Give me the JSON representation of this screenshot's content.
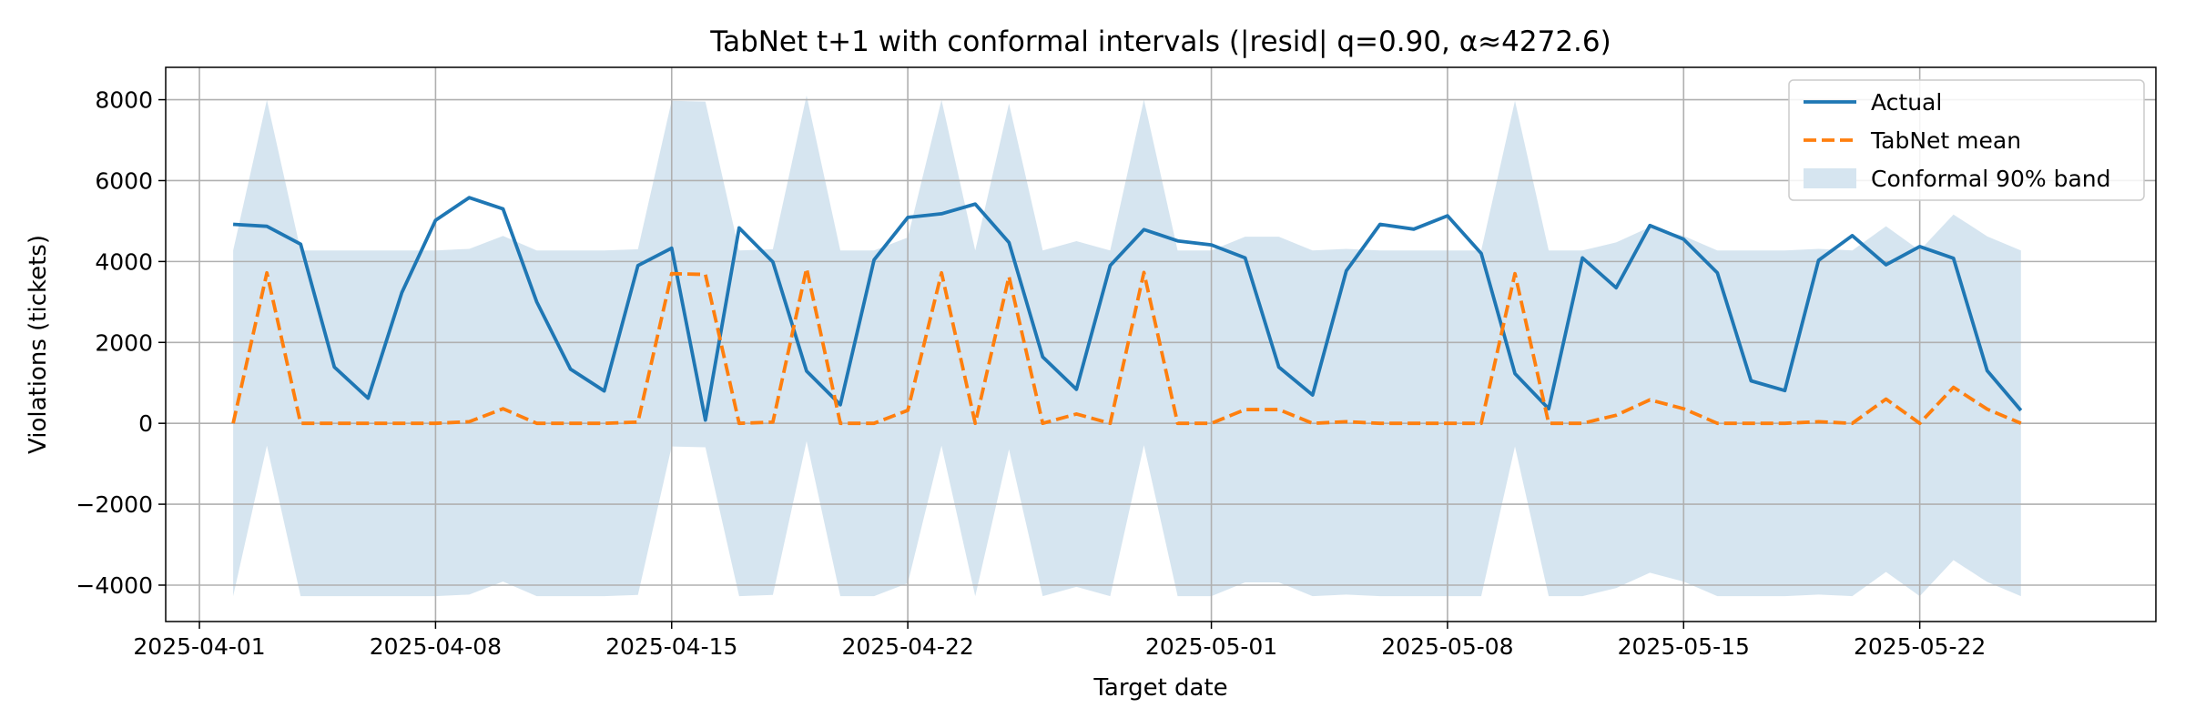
{
  "chart_data": {
    "type": "line",
    "title": "TabNet t+1 with conformal intervals (|resid| q=0.90, α≈4272.6)",
    "xlabel": "Target date",
    "ylabel": "Violations (tickets)",
    "xlim": [
      "2025-03-31",
      "2025-05-29"
    ],
    "ylim": [
      -4900,
      8800
    ],
    "x_ticks": [
      "2025-04-01",
      "2025-04-08",
      "2025-04-15",
      "2025-04-22",
      "2025-05-01",
      "2025-05-08",
      "2025-05-15",
      "2025-05-22"
    ],
    "y_ticks": [
      -4000,
      -2000,
      0,
      2000,
      4000,
      6000,
      8000
    ],
    "grid": true,
    "legend": "top-right",
    "x": [
      "2025-04-02",
      "2025-04-03",
      "2025-04-04",
      "2025-04-05",
      "2025-04-06",
      "2025-04-07",
      "2025-04-08",
      "2025-04-09",
      "2025-04-10",
      "2025-04-11",
      "2025-04-12",
      "2025-04-13",
      "2025-04-14",
      "2025-04-15",
      "2025-04-16",
      "2025-04-17",
      "2025-04-18",
      "2025-04-19",
      "2025-04-20",
      "2025-04-21",
      "2025-04-22",
      "2025-04-23",
      "2025-04-24",
      "2025-04-25",
      "2025-04-26",
      "2025-04-27",
      "2025-04-28",
      "2025-04-29",
      "2025-04-30",
      "2025-05-01",
      "2025-05-02",
      "2025-05-03",
      "2025-05-04",
      "2025-05-05",
      "2025-05-06",
      "2025-05-07",
      "2025-05-08",
      "2025-05-09",
      "2025-05-10",
      "2025-05-11",
      "2025-05-12",
      "2025-05-13",
      "2025-05-14",
      "2025-05-15",
      "2025-05-16",
      "2025-05-17",
      "2025-05-18",
      "2025-05-19",
      "2025-05-20",
      "2025-05-21",
      "2025-05-22",
      "2025-05-23",
      "2025-05-24",
      "2025-05-25"
    ],
    "series": [
      {
        "name": "Actual",
        "color": "#1f77b4",
        "style": "solid",
        "values": [
          4920,
          4870,
          4430,
          1390,
          620,
          3230,
          5020,
          5580,
          5300,
          3000,
          1340,
          800,
          3900,
          4330,
          80,
          4830,
          3990,
          1290,
          460,
          4040,
          5090,
          5180,
          5420,
          4470,
          1640,
          840,
          3900,
          4790,
          4510,
          4410,
          4090,
          1390,
          700,
          3770,
          4920,
          4800,
          5130,
          4200,
          1230,
          360,
          4090,
          3350,
          4890,
          4550,
          3720,
          1050,
          810,
          4030,
          4640,
          3920,
          4370,
          4080,
          1300,
          320
        ]
      },
      {
        "name": "TabNet mean",
        "color": "#ff7f0e",
        "style": "dashed",
        "values": [
          0,
          3720,
          0,
          0,
          0,
          0,
          0,
          40,
          360,
          0,
          0,
          0,
          30,
          3700,
          3680,
          0,
          30,
          3830,
          0,
          0,
          320,
          3720,
          0,
          3630,
          0,
          230,
          0,
          3730,
          0,
          0,
          340,
          340,
          0,
          40,
          0,
          0,
          0,
          0,
          3700,
          0,
          0,
          200,
          580,
          360,
          0,
          0,
          0,
          40,
          0,
          600,
          0,
          890,
          350,
          0
        ]
      }
    ],
    "band": {
      "name": "Conformal 90% band",
      "color": "#d6e5f0",
      "half_width": 4272.6,
      "center_series": "TabNet mean"
    }
  }
}
